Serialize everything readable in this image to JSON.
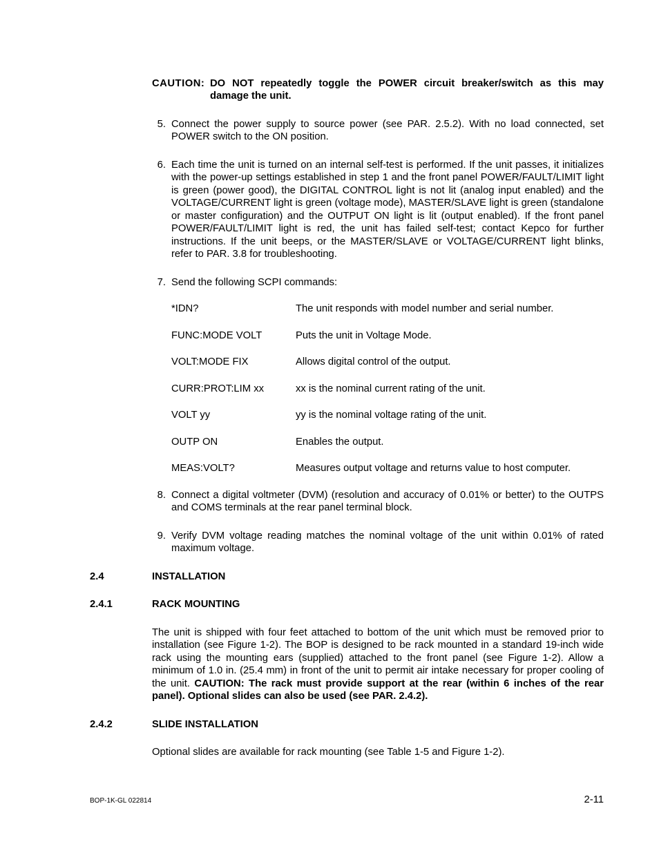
{
  "caution": {
    "label": "CAUTION:",
    "text": "DO NOT repeatedly toggle the POWER circuit breaker/switch as this may damage the unit."
  },
  "items": {
    "n5": "5.",
    "t5": "Connect the power supply to source power (see PAR. 2.5.2). With no load connected, set POWER switch to the ON position.",
    "n6": "6.",
    "t6": "Each time the unit is turned on an internal self-test is performed. If the unit passes, it initializes with the power-up settings established in step 1 and the front panel POWER/FAULT/LIMIT light is green (power good), the DIGITAL CONTROL light is not lit (analog input enabled) and the VOLTAGE/CURRENT light is green (voltage mode), MASTER/SLAVE light is green (standalone or master configuration) and the OUTPUT ON light is lit (output enabled). If the front panel POWER/FAULT/LIMIT light is red, the unit has failed self-test; contact Kepco for further instructions. If the unit beeps, or the MASTER/SLAVE or VOLTAGE/CURRENT light blinks, refer to PAR. 3.8 for troubleshooting.",
    "n7": "7.",
    "t7": "Send the following SCPI commands:",
    "n8": "8.",
    "t8": "Connect a digital voltmeter (DVM) (resolution and accuracy of 0.01% or better) to the OUTPS and COMS terminals at the rear panel terminal block.",
    "n9": "9.",
    "t9": "Verify DVM voltage reading matches the nominal voltage of the unit within 0.01% of rated maximum voltage."
  },
  "scpi": [
    {
      "cmd": "*IDN?",
      "desc": "The unit responds with model number and serial number."
    },
    {
      "cmd": "FUNC:MODE VOLT",
      "desc": "Puts the unit in Voltage Mode."
    },
    {
      "cmd": "VOLT:MODE FIX",
      "desc": "Allows digital control of the output."
    },
    {
      "cmd": "CURR:PROT:LIM xx",
      "desc": "xx is the nominal current rating of the unit."
    },
    {
      "cmd": "VOLT yy",
      "desc": "yy is the nominal voltage rating of the unit."
    },
    {
      "cmd": "OUTP ON",
      "desc": "Enables the output."
    },
    {
      "cmd": "MEAS:VOLT?",
      "desc": "Measures output voltage and returns value to host computer."
    }
  ],
  "sections": {
    "s24num": "2.4",
    "s24title": "INSTALLATION",
    "s241num": "2.4.1",
    "s241title": "RACK MOUNTING",
    "s241body_a": "The unit is shipped with four feet attached to bottom of the unit which must be removed prior to installation (see Figure 1-2). The BOP is designed to be rack mounted in a standard 19-inch wide rack using the mounting ears (supplied) attached to the front panel (see Figure 1-2). Allow a minimum of 1.0 in. (25.4 mm) in front of the unit to permit air intake necessary for proper cooling of the unit. ",
    "s241body_b": "CAUTION: The rack must provide support at the rear (within 6 inches of the rear panel). Optional slides can also be used (see PAR. 2.4.2).",
    "s242num": "2.4.2",
    "s242title": "SLIDE INSTALLATION",
    "s242body": "Optional slides are available for rack mounting (see Table 1-5 and Figure 1-2)."
  },
  "footer": {
    "left": "BOP-1K-GL 022814",
    "right": "2-11"
  }
}
